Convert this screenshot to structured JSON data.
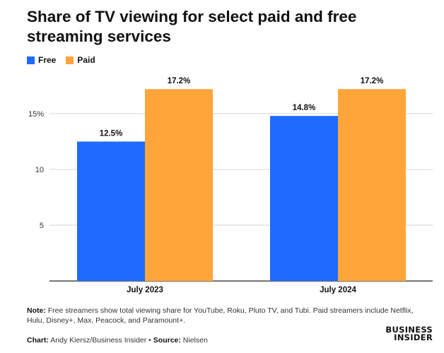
{
  "header": {
    "title": "Share of TV viewing for select paid and free streaming services"
  },
  "footer": {
    "note_label": "Note:",
    "note_text": "Free streamers show total viewing share for YouTube, Roku, Pluto TV, and Tubi. Paid streamers include Netflix, Hulu, Disney+, Max, Peacock, and Paramount+.",
    "chart_label": "Chart:",
    "chart_credit": "Andy Kiersz/Business Insider",
    "separator": "•",
    "source_label": "Source:",
    "source_text": "Nielsen",
    "logo_line1": "BUSINESS",
    "logo_line2": "INSIDER"
  },
  "chart_data": {
    "type": "bar",
    "title": "Share of TV viewing for select paid and free streaming services",
    "categories": [
      "July 2023",
      "July 2024"
    ],
    "series": [
      {
        "name": "Free",
        "values": [
          12.5,
          14.8
        ],
        "labels": [
          "12.5%",
          "14.8%"
        ],
        "color": "#1f6bff"
      },
      {
        "name": "Paid",
        "values": [
          17.2,
          17.2
        ],
        "labels": [
          "17.2%",
          "17.2%"
        ],
        "color": "#ffa53a"
      }
    ],
    "ylim": [
      0,
      17.5
    ],
    "yticks": [
      5,
      10,
      15
    ],
    "ytick_labels": [
      "5",
      "10",
      "15%"
    ],
    "grid": true,
    "legend": "top-left",
    "xlabel": "",
    "ylabel": ""
  }
}
